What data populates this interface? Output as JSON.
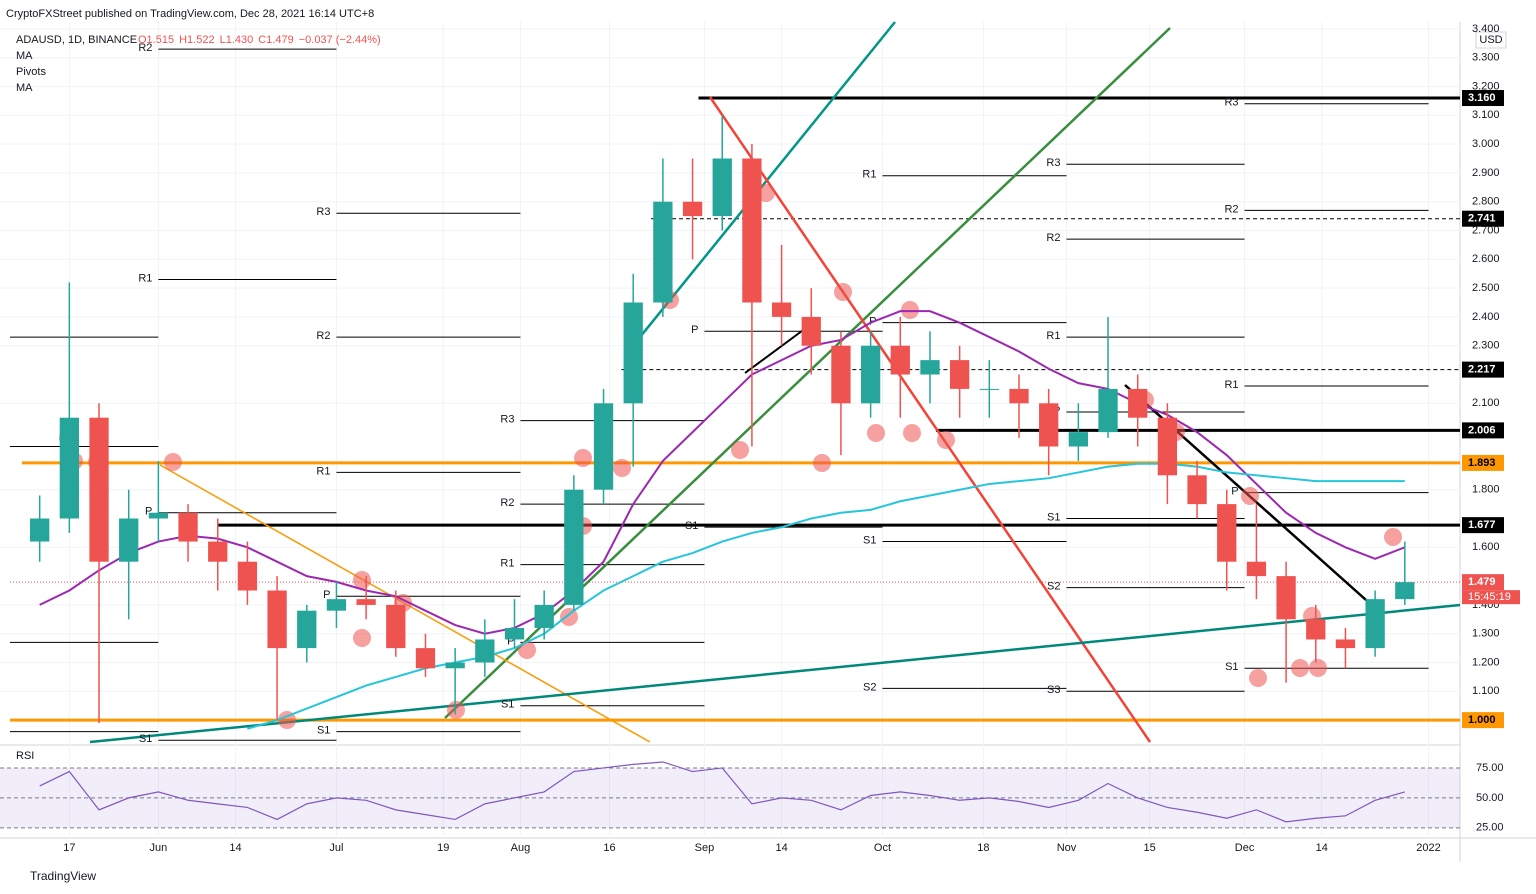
{
  "header": {
    "publisher": "CryptoFXStreet published on TradingView.com, Dec 28, 2021 16:14 UTC+8",
    "symbol": "ADAUSD, 1D, BINANCE",
    "ohlc": [
      "O1.515",
      "H1.522",
      "L1.430",
      "C1.479",
      "−0.037 (−2.44%)"
    ],
    "indicators": [
      "MA",
      "Pivots",
      "MA"
    ],
    "currency": "USD",
    "countdown": "15:45:19",
    "footer": "TradingView"
  },
  "chart_data": {
    "type": "candlestick",
    "x": [
      -20,
      -15,
      -10,
      -5,
      0,
      5,
      10,
      15,
      20,
      25,
      30,
      35,
      40,
      45,
      50,
      55,
      60,
      65,
      70,
      75,
      80,
      85,
      90,
      95,
      100,
      105,
      110,
      115,
      120,
      125,
      130,
      135,
      140,
      145,
      150,
      155,
      160,
      165,
      170,
      175,
      180,
      185,
      190,
      195,
      200,
      205,
      210
    ],
    "open": [
      1.62,
      1.7,
      2.05,
      1.55,
      1.7,
      1.72,
      1.62,
      1.55,
      1.45,
      1.25,
      1.38,
      1.42,
      1.4,
      1.25,
      1.18,
      1.2,
      1.28,
      1.32,
      1.4,
      1.8,
      2.1,
      2.45,
      2.8,
      2.75,
      2.95,
      2.45,
      2.4,
      2.3,
      2.1,
      2.3,
      2.2,
      2.25,
      2.15,
      2.15,
      2.1,
      1.95,
      2.0,
      2.15,
      2.05,
      1.85,
      1.75,
      1.55,
      1.5,
      1.35,
      1.28,
      1.25,
      1.42
    ],
    "high": [
      1.78,
      2.52,
      2.1,
      1.8,
      1.9,
      1.75,
      1.7,
      1.62,
      1.5,
      1.4,
      1.48,
      1.5,
      1.45,
      1.3,
      1.25,
      1.35,
      1.42,
      1.45,
      1.85,
      2.15,
      2.55,
      2.95,
      2.95,
      3.1,
      3.0,
      2.65,
      2.5,
      2.35,
      2.35,
      2.4,
      2.35,
      2.3,
      2.25,
      2.2,
      2.15,
      2.1,
      2.4,
      2.2,
      2.1,
      1.9,
      1.8,
      1.75,
      1.55,
      1.4,
      1.32,
      1.45,
      1.62
    ],
    "low": [
      1.55,
      1.65,
      0.99,
      1.35,
      1.62,
      1.55,
      1.45,
      1.4,
      1.0,
      1.2,
      1.32,
      1.35,
      1.22,
      1.15,
      1.02,
      1.15,
      1.25,
      1.28,
      1.38,
      1.75,
      1.88,
      2.4,
      2.6,
      2.7,
      1.95,
      2.3,
      2.2,
      1.92,
      2.05,
      2.05,
      2.1,
      2.05,
      2.05,
      1.98,
      1.85,
      1.9,
      1.98,
      1.95,
      1.75,
      1.7,
      1.45,
      1.42,
      1.13,
      1.2,
      1.18,
      1.22,
      1.4
    ],
    "close": [
      1.7,
      2.05,
      1.55,
      1.7,
      1.72,
      1.62,
      1.55,
      1.45,
      1.25,
      1.38,
      1.42,
      1.4,
      1.25,
      1.18,
      1.2,
      1.28,
      1.32,
      1.4,
      1.8,
      2.1,
      2.45,
      2.8,
      2.75,
      2.95,
      2.45,
      2.4,
      2.3,
      2.1,
      2.3,
      2.2,
      2.25,
      2.15,
      2.15,
      2.1,
      1.95,
      2.0,
      2.15,
      2.05,
      1.85,
      1.75,
      1.55,
      1.5,
      1.35,
      1.28,
      1.25,
      1.42,
      1.479
    ],
    "up_color": "#26a69a",
    "down_color": "#ef5350",
    "moving_averages": [
      {
        "color": "#9c27b0",
        "values": [
          1.4,
          1.45,
          1.52,
          1.58,
          1.62,
          1.64,
          1.63,
          1.6,
          1.55,
          1.5,
          1.48,
          1.45,
          1.43,
          1.38,
          1.33,
          1.3,
          1.32,
          1.37,
          1.45,
          1.55,
          1.75,
          1.9,
          2.0,
          2.1,
          2.2,
          2.25,
          2.3,
          2.32,
          2.38,
          2.42,
          2.42,
          2.38,
          2.33,
          2.28,
          2.22,
          2.17,
          2.15,
          2.1,
          2.06,
          2.0,
          1.92,
          1.82,
          1.72,
          1.65,
          1.6,
          1.56,
          1.6
        ]
      },
      {
        "color": "#26c6da",
        "values": [
          null,
          null,
          null,
          null,
          null,
          null,
          null,
          0.97,
          1.0,
          1.04,
          1.08,
          1.12,
          1.15,
          1.18,
          1.2,
          1.22,
          1.25,
          1.3,
          1.38,
          1.45,
          1.5,
          1.55,
          1.58,
          1.62,
          1.65,
          1.67,
          1.7,
          1.72,
          1.73,
          1.76,
          1.78,
          1.8,
          1.82,
          1.83,
          1.84,
          1.86,
          1.88,
          1.89,
          1.89,
          1.88,
          1.86,
          1.85,
          1.84,
          1.83,
          1.83,
          1.83,
          1.83
        ]
      }
    ],
    "xlim": [
      -25,
      219.3
    ],
    "ylim": [
      0.924,
      3.424
    ],
    "xticks": [
      {
        "value": -15,
        "label": "17"
      },
      {
        "value": 0,
        "label": "Jun"
      },
      {
        "value": 13,
        "label": "14"
      },
      {
        "value": 30,
        "label": "Jul"
      },
      {
        "value": 48,
        "label": "19"
      },
      {
        "value": 61,
        "label": "Aug"
      },
      {
        "value": 76,
        "label": "16"
      },
      {
        "value": 92,
        "label": "Sep"
      },
      {
        "value": 105,
        "label": "14"
      },
      {
        "value": 122,
        "label": "Oct"
      },
      {
        "value": 139,
        "label": "18"
      },
      {
        "value": 153,
        "label": "Nov"
      },
      {
        "value": 167,
        "label": "15"
      },
      {
        "value": 183,
        "label": "Dec"
      },
      {
        "value": 196,
        "label": "14"
      },
      {
        "value": 214,
        "label": "2022"
      }
    ],
    "yticks": [
      {
        "value": 1.1,
        "label": "1.100"
      },
      {
        "value": 1.2,
        "label": "1.200"
      },
      {
        "value": 1.3,
        "label": "1.300"
      },
      {
        "value": 1.4,
        "label": "1.400"
      },
      {
        "value": 1.6,
        "label": "1.600"
      },
      {
        "value": 1.8,
        "label": "1.800"
      },
      {
        "value": 2.1,
        "label": "2.100"
      },
      {
        "value": 2.3,
        "label": "2.300"
      },
      {
        "value": 2.4,
        "label": "2.400"
      },
      {
        "value": 2.5,
        "label": "2.500"
      },
      {
        "value": 2.6,
        "label": "2.600"
      },
      {
        "value": 2.7,
        "label": "2.700"
      },
      {
        "value": 2.8,
        "label": "2.800"
      },
      {
        "value": 2.9,
        "label": "2.900"
      },
      {
        "value": 3.0,
        "label": "3.000"
      },
      {
        "value": 3.1,
        "label": "3.100"
      },
      {
        "value": 3.2,
        "label": "3.200"
      },
      {
        "value": 3.3,
        "label": "3.300"
      },
      {
        "value": 3.4,
        "label": "3.400"
      }
    ],
    "grid": true,
    "levels": [
      {
        "value": 3.16,
        "label": "3.160",
        "x0": 91,
        "color": "#000000",
        "style": "solid"
      },
      {
        "value": 2.741,
        "label": "2.741",
        "x0": 83,
        "color": "#000000",
        "style": "dashed"
      },
      {
        "value": 2.217,
        "label": "2.217",
        "x0": 78,
        "color": "#000000",
        "style": "dashed"
      },
      {
        "value": 2.006,
        "label": "2.006",
        "x0": 131,
        "color": "#000000",
        "style": "solid"
      },
      {
        "value": 1.893,
        "label": "1.893",
        "x0": -23,
        "color": "#ff9800",
        "style": "solid"
      },
      {
        "value": 1.677,
        "label": "1.677",
        "x0": 10,
        "color": "#000000",
        "style": "solid"
      },
      {
        "value": 1.479,
        "label": "1.479",
        "x0": -25,
        "color": "#ef5350",
        "style": "dotted"
      },
      {
        "value": 1.0,
        "label": "1.000",
        "x0": -25,
        "color": "#ff9800",
        "style": "solid"
      }
    ],
    "pivots": [
      {
        "value": 2.33,
        "x0": -25,
        "x1": 0
      },
      {
        "value": 1.95,
        "x0": -25,
        "x1": 0
      },
      {
        "value": 1.27,
        "x0": -25,
        "x1": 0
      },
      {
        "value": 0.96,
        "x0": -25,
        "x1": 0
      },
      {
        "label": "R2",
        "value": 3.33,
        "x0": 0,
        "x1": 30
      },
      {
        "label": "R1",
        "value": 2.53,
        "x0": 0,
        "x1": 30
      },
      {
        "label": "P",
        "value": 1.72,
        "x0": 0,
        "x1": 30
      },
      {
        "label": "S1",
        "value": 0.93,
        "x0": 0,
        "x1": 30
      },
      {
        "label": "R3",
        "value": 2.76,
        "x0": 30,
        "x1": 61
      },
      {
        "label": "R2",
        "value": 2.33,
        "x0": 30,
        "x1": 61
      },
      {
        "label": "R1",
        "value": 1.86,
        "x0": 30,
        "x1": 61
      },
      {
        "label": "P",
        "value": 1.43,
        "x0": 30,
        "x1": 61
      },
      {
        "label": "S1",
        "value": 0.96,
        "x0": 30,
        "x1": 61
      },
      {
        "label": "R3",
        "value": 2.04,
        "x0": 61,
        "x1": 92
      },
      {
        "label": "R2",
        "value": 1.75,
        "x0": 61,
        "x1": 92
      },
      {
        "label": "R1",
        "value": 1.54,
        "x0": 61,
        "x1": 92
      },
      {
        "label": "P",
        "value": 1.27,
        "x0": 61,
        "x1": 92
      },
      {
        "label": "S1",
        "value": 1.05,
        "x0": 61,
        "x1": 92
      },
      {
        "label": "P",
        "value": 2.35,
        "x0": 92,
        "x1": 122
      },
      {
        "label": "S1",
        "value": 1.67,
        "x0": 92,
        "x1": 122
      },
      {
        "label": "R1",
        "value": 2.89,
        "x0": 122,
        "x1": 153
      },
      {
        "label": "P",
        "value": 2.38,
        "x0": 122,
        "x1": 153
      },
      {
        "label": "S1",
        "value": 1.62,
        "x0": 122,
        "x1": 153
      },
      {
        "label": "S2",
        "value": 1.11,
        "x0": 122,
        "x1": 153
      },
      {
        "label": "R3",
        "value": 2.93,
        "x0": 153,
        "x1": 183
      },
      {
        "label": "R2",
        "value": 2.67,
        "x0": 153,
        "x1": 183
      },
      {
        "label": "R1",
        "value": 2.33,
        "x0": 153,
        "x1": 183
      },
      {
        "label": "P",
        "value": 2.07,
        "x0": 153,
        "x1": 183
      },
      {
        "label": "S1",
        "value": 1.7,
        "x0": 153,
        "x1": 183
      },
      {
        "label": "S2",
        "value": 1.46,
        "x0": 153,
        "x1": 183
      },
      {
        "label": "S3",
        "value": 1.1,
        "x0": 153,
        "x1": 183
      },
      {
        "label": "R3",
        "value": 3.14,
        "x0": 183,
        "x1": 214
      },
      {
        "label": "R2",
        "value": 2.77,
        "x0": 183,
        "x1": 214
      },
      {
        "label": "R1",
        "value": 2.16,
        "x0": 183,
        "x1": 214
      },
      {
        "label": "P",
        "value": 1.79,
        "x0": 183,
        "x1": 214
      },
      {
        "label": "S1",
        "value": 1.18,
        "x0": 183,
        "x1": 214
      }
    ],
    "rsi": {
      "label": "RSI",
      "color": "#7e57c2",
      "ylim": [
        19,
        90
      ],
      "yticks": [
        {
          "value": 75,
          "label": "75.00"
        },
        {
          "value": 50,
          "label": "50.00"
        },
        {
          "value": 25,
          "label": "25.00"
        }
      ],
      "values": [
        60,
        72,
        40,
        50,
        55,
        48,
        45,
        42,
        32,
        45,
        50,
        48,
        40,
        36,
        32,
        45,
        50,
        55,
        72,
        75,
        78,
        80,
        72,
        75,
        45,
        50,
        48,
        40,
        52,
        55,
        52,
        48,
        50,
        47,
        42,
        48,
        62,
        50,
        42,
        38,
        33,
        40,
        30,
        33,
        35,
        48,
        55
      ]
    }
  }
}
